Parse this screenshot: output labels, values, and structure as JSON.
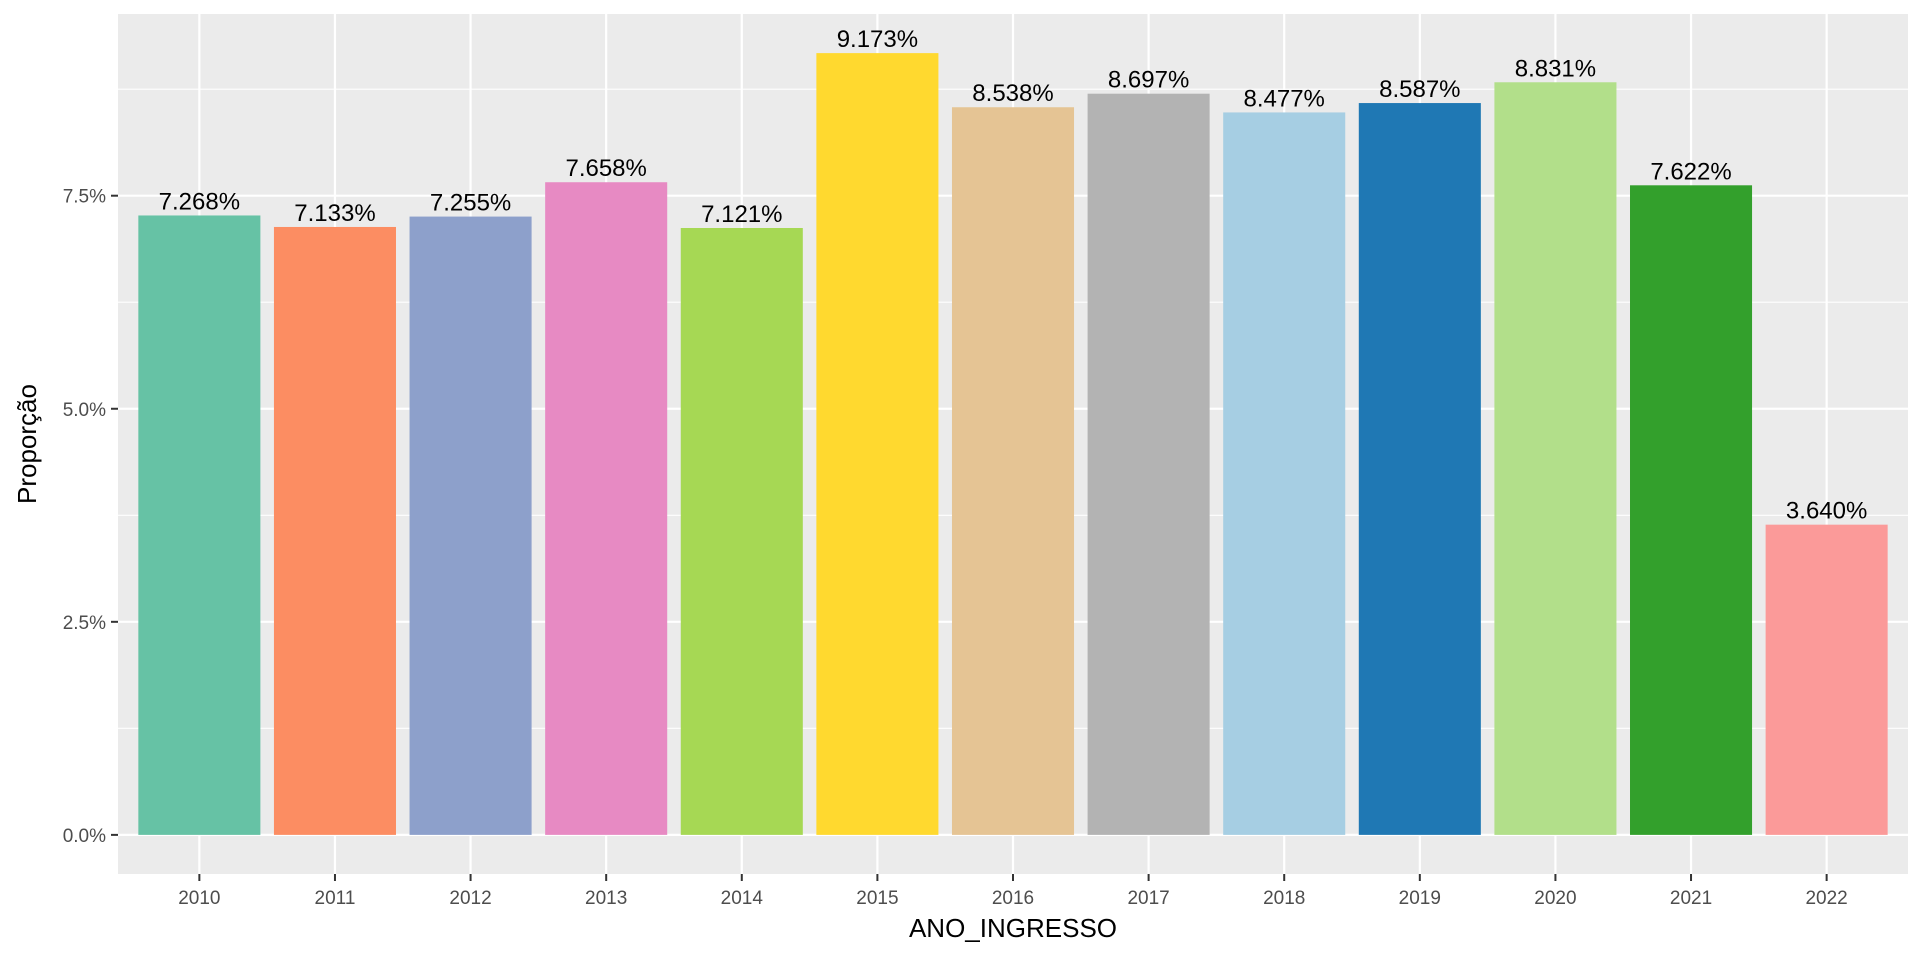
{
  "chart_data": {
    "type": "bar",
    "title": "",
    "xlabel": "ANO_INGRESSO",
    "ylabel": "Proporção",
    "categories": [
      "2010",
      "2011",
      "2012",
      "2013",
      "2014",
      "2015",
      "2016",
      "2017",
      "2018",
      "2019",
      "2020",
      "2021",
      "2022"
    ],
    "values": [
      7.268,
      7.133,
      7.255,
      7.658,
      7.121,
      9.173,
      8.538,
      8.697,
      8.477,
      8.587,
      8.831,
      7.622,
      3.64
    ],
    "value_labels": [
      "7.268%",
      "7.133%",
      "7.255%",
      "7.658%",
      "7.121%",
      "9.173%",
      "8.538%",
      "8.697%",
      "8.477%",
      "8.587%",
      "8.831%",
      "7.622%",
      "3.640%"
    ],
    "colors": [
      "#66c2a5",
      "#fc8d62",
      "#8da0cb",
      "#e78ac3",
      "#a6d854",
      "#ffd92f",
      "#e5c494",
      "#b3b3b3",
      "#a6cee3",
      "#1f78b4",
      "#b2df8a",
      "#33a02c",
      "#fb9a99"
    ],
    "yticks": [
      0,
      2.5,
      5,
      7.5
    ],
    "ytick_labels": [
      "0.0%",
      "2.5%",
      "5.0%",
      "7.5%"
    ],
    "ylim": [
      -0.459,
      9.632
    ],
    "grid": true,
    "legend": "none",
    "panel_background": "#ebebeb",
    "grid_color": "#ffffff"
  }
}
